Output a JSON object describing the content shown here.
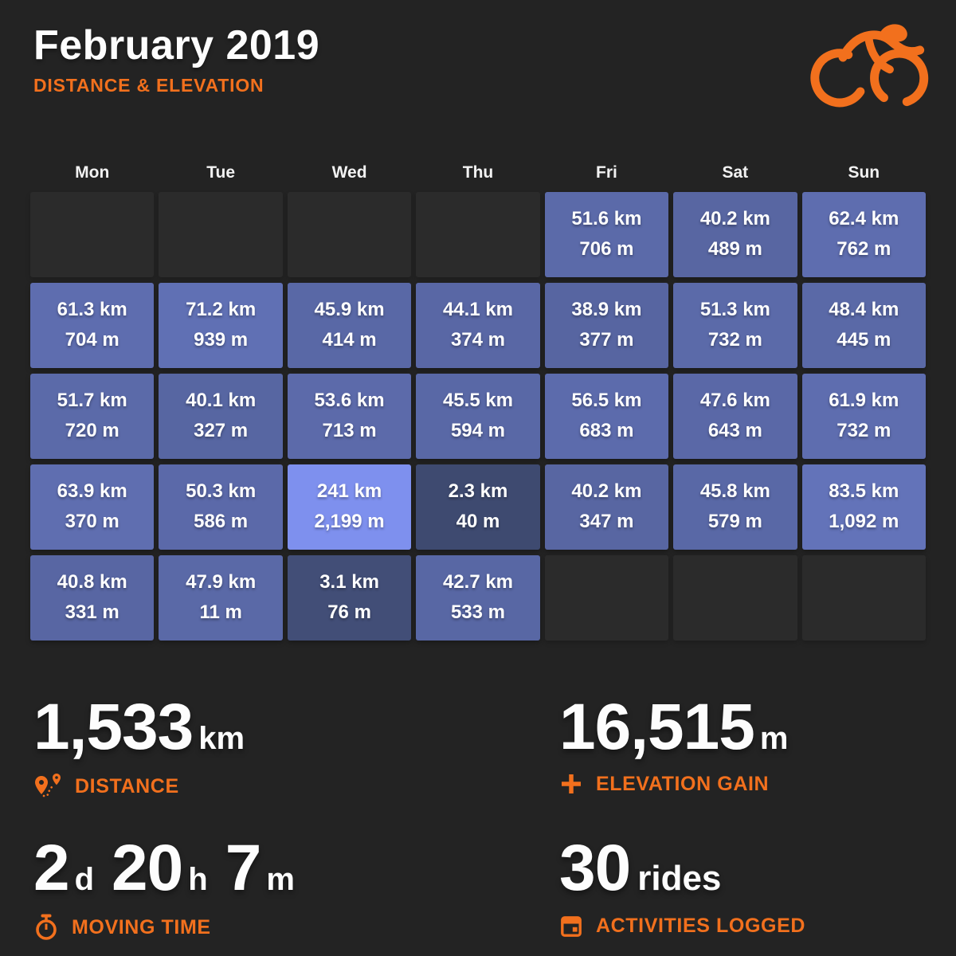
{
  "header": {
    "title": "February 2019",
    "subtitle": "DISTANCE & ELEVATION"
  },
  "colors": {
    "background": "#232323",
    "accent": "#f2701d",
    "cell_text": "#ffffff",
    "empty_cell": "#2b2b2b"
  },
  "icons": {
    "logo": "cyclist-logo-icon",
    "distance": "route-pins-icon",
    "elevation": "plus-icon",
    "moving_time": "stopwatch-icon",
    "rides": "calendar-icon"
  },
  "chart_data": {
    "type": "heatmap",
    "title": "February 2019",
    "subtitle": "DISTANCE & ELEVATION",
    "columns": [
      "Mon",
      "Tue",
      "Wed",
      "Thu",
      "Fri",
      "Sat",
      "Sun"
    ],
    "units": {
      "distance": "km",
      "elevation": "m"
    },
    "weeks": [
      [
        null,
        null,
        null,
        null,
        {
          "km": 51.6,
          "m": 706
        },
        {
          "km": 40.2,
          "m": 489
        },
        {
          "km": 62.4,
          "m": 762
        }
      ],
      [
        {
          "km": 61.3,
          "m": 704
        },
        {
          "km": 71.2,
          "m": 939
        },
        {
          "km": 45.9,
          "m": 414
        },
        {
          "km": 44.1,
          "m": 374
        },
        {
          "km": 38.9,
          "m": 377
        },
        {
          "km": 51.3,
          "m": 732
        },
        {
          "km": 48.4,
          "m": 445
        }
      ],
      [
        {
          "km": 51.7,
          "m": 720
        },
        {
          "km": 40.1,
          "m": 327
        },
        {
          "km": 53.6,
          "m": 713
        },
        {
          "km": 45.5,
          "m": 594
        },
        {
          "km": 56.5,
          "m": 683
        },
        {
          "km": 47.6,
          "m": 643
        },
        {
          "km": 61.9,
          "m": 732
        }
      ],
      [
        {
          "km": 63.9,
          "m": 370
        },
        {
          "km": 50.3,
          "m": 586
        },
        {
          "km": 241,
          "m": 2199
        },
        {
          "km": 2.3,
          "m": 40
        },
        {
          "km": 40.2,
          "m": 347
        },
        {
          "km": 45.8,
          "m": 579
        },
        {
          "km": 83.5,
          "m": 1092
        }
      ],
      [
        {
          "km": 40.8,
          "m": 331
        },
        {
          "km": 47.9,
          "m": 11
        },
        {
          "km": 3.1,
          "m": 76
        },
        {
          "km": 42.7,
          "m": 533
        },
        null,
        null,
        null
      ]
    ],
    "color_scale": {
      "low": "#3e4a70",
      "high": "#7e90ee",
      "min_km": 2.3,
      "max_km": 241
    },
    "totals": {
      "distance_km": 1533,
      "elevation_gain_m": 16515,
      "moving_time": "2d 20h 7m",
      "rides": 30
    }
  },
  "stats": {
    "distance": {
      "value": "1,533",
      "unit": "km",
      "label": "DISTANCE"
    },
    "elevation": {
      "value": "16,515",
      "unit": "m",
      "label": "ELEVATION GAIN"
    },
    "moving_time": {
      "days": "2",
      "days_unit": "d",
      "hours": "20",
      "hours_unit": "h",
      "minutes": "7",
      "minutes_unit": "m",
      "label": "MOVING TIME"
    },
    "rides": {
      "value": "30",
      "unit": "rides",
      "label": "ACTIVITIES LOGGED"
    }
  }
}
